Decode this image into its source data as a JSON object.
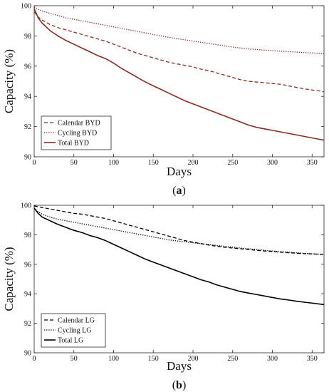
{
  "chart_data": [
    {
      "type": "line",
      "caption": "(a)",
      "caption_parts": [
        "(",
        "a",
        ")"
      ],
      "xlabel": "Days",
      "ylabel": "Capacity (%)",
      "xlim": [
        0,
        365
      ],
      "ylim": [
        90,
        100
      ],
      "xticks": [
        0,
        50,
        100,
        150,
        200,
        250,
        300,
        350
      ],
      "yticks": [
        90,
        92,
        94,
        96,
        98,
        100
      ],
      "grid": false,
      "legend_position": "bottom-left",
      "x": [
        0,
        5,
        10,
        20,
        30,
        40,
        50,
        60,
        70,
        80,
        90,
        100,
        110,
        120,
        130,
        140,
        150,
        160,
        170,
        180,
        190,
        200,
        210,
        220,
        230,
        240,
        250,
        260,
        270,
        280,
        290,
        300,
        310,
        320,
        330,
        340,
        350,
        360,
        365
      ],
      "series": [
        {
          "name": "Calendar BYD",
          "style": "dashed",
          "color": "#8b2a1e",
          "values": [
            99.6,
            99.25,
            99.05,
            98.75,
            98.55,
            98.4,
            98.25,
            98.1,
            97.95,
            97.8,
            97.65,
            97.45,
            97.25,
            97.05,
            96.85,
            96.7,
            96.55,
            96.4,
            96.25,
            96.15,
            96.05,
            95.95,
            95.8,
            95.7,
            95.55,
            95.4,
            95.25,
            95.1,
            95.0,
            94.95,
            94.9,
            94.85,
            94.8,
            94.7,
            94.6,
            94.5,
            94.42,
            94.35,
            94.3
          ]
        },
        {
          "name": "Cycling BYD",
          "style": "dotted",
          "color": "#8b2a1e",
          "values": [
            99.9,
            99.75,
            99.65,
            99.5,
            99.35,
            99.2,
            99.1,
            99.0,
            98.9,
            98.8,
            98.7,
            98.6,
            98.5,
            98.4,
            98.3,
            98.2,
            98.1,
            98.0,
            97.9,
            97.82,
            97.74,
            97.66,
            97.58,
            97.5,
            97.42,
            97.34,
            97.26,
            97.2,
            97.14,
            97.1,
            97.06,
            97.02,
            96.99,
            96.96,
            96.93,
            96.9,
            96.87,
            96.84,
            96.82
          ]
        },
        {
          "name": "Total BYD",
          "style": "solid",
          "color": "#8b2a1e",
          "values": [
            99.8,
            99.2,
            98.85,
            98.35,
            98.0,
            97.7,
            97.45,
            97.2,
            96.95,
            96.7,
            96.5,
            96.2,
            95.85,
            95.55,
            95.25,
            94.95,
            94.7,
            94.45,
            94.2,
            93.95,
            93.7,
            93.5,
            93.3,
            93.1,
            92.9,
            92.7,
            92.5,
            92.3,
            92.1,
            91.95,
            91.85,
            91.75,
            91.65,
            91.55,
            91.45,
            91.35,
            91.25,
            91.15,
            91.1
          ]
        }
      ]
    },
    {
      "type": "line",
      "caption": "(b)",
      "caption_parts": [
        "(",
        "b",
        ")"
      ],
      "xlabel": "Days",
      "ylabel": "Capacity (%)",
      "xlim": [
        0,
        365
      ],
      "ylim": [
        90,
        100
      ],
      "xticks": [
        0,
        50,
        100,
        150,
        200,
        250,
        300,
        350
      ],
      "yticks": [
        90,
        92,
        94,
        96,
        98,
        100
      ],
      "grid": false,
      "legend_position": "bottom-left",
      "x": [
        0,
        5,
        10,
        20,
        30,
        40,
        50,
        60,
        70,
        80,
        90,
        100,
        110,
        120,
        130,
        140,
        150,
        160,
        170,
        180,
        190,
        200,
        210,
        220,
        230,
        240,
        250,
        260,
        270,
        280,
        290,
        300,
        310,
        320,
        330,
        340,
        350,
        360,
        365
      ],
      "series": [
        {
          "name": "Calendar LG",
          "style": "dashed",
          "color": "#000000",
          "values": [
            99.95,
            99.9,
            99.85,
            99.75,
            99.65,
            99.55,
            99.45,
            99.4,
            99.3,
            99.2,
            99.1,
            98.95,
            98.8,
            98.65,
            98.5,
            98.35,
            98.2,
            98.05,
            97.9,
            97.75,
            97.6,
            97.5,
            97.4,
            97.3,
            97.22,
            97.15,
            97.1,
            97.05,
            97.0,
            96.95,
            96.9,
            96.86,
            96.82,
            96.78,
            96.75,
            96.72,
            96.7,
            96.68,
            96.67
          ]
        },
        {
          "name": "Cycling LG",
          "style": "dotted",
          "color": "#000000",
          "values": [
            99.8,
            99.55,
            99.4,
            99.2,
            99.05,
            98.95,
            98.85,
            98.75,
            98.65,
            98.55,
            98.45,
            98.35,
            98.25,
            98.15,
            98.05,
            97.95,
            97.85,
            97.75,
            97.65,
            97.58,
            97.52,
            97.46,
            97.4,
            97.34,
            97.28,
            97.22,
            97.16,
            97.1,
            97.05,
            97.0,
            96.95,
            96.9,
            96.86,
            96.82,
            96.78,
            96.74,
            96.71,
            96.68,
            96.66
          ]
        },
        {
          "name": "Total LG",
          "style": "solid",
          "color": "#000000",
          "values": [
            99.8,
            99.45,
            99.2,
            98.95,
            98.7,
            98.5,
            98.3,
            98.15,
            97.95,
            97.8,
            97.6,
            97.35,
            97.1,
            96.85,
            96.6,
            96.35,
            96.15,
            95.95,
            95.75,
            95.55,
            95.35,
            95.15,
            94.95,
            94.8,
            94.6,
            94.45,
            94.3,
            94.15,
            94.05,
            93.95,
            93.85,
            93.75,
            93.65,
            93.58,
            93.5,
            93.43,
            93.37,
            93.3,
            93.27
          ]
        }
      ]
    }
  ]
}
